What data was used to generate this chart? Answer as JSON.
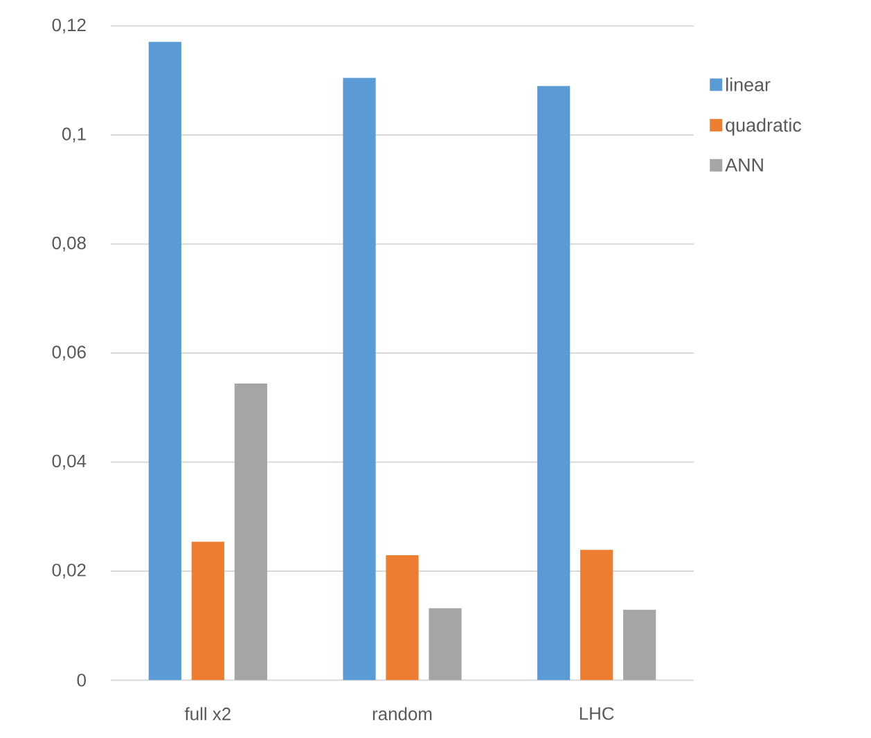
{
  "chart_data": {
    "type": "bar",
    "categories": [
      "full x2",
      "random",
      "LHC"
    ],
    "series": [
      {
        "name": "linear",
        "color": "#5b9bd5",
        "values": [
          0.1171,
          0.1105,
          0.109
        ]
      },
      {
        "name": "quadratic",
        "color": "#ed7d31",
        "values": [
          0.0254,
          0.0229,
          0.0239
        ]
      },
      {
        "name": "ANN",
        "color": "#a5a5a5",
        "values": [
          0.0544,
          0.0132,
          0.0129
        ]
      }
    ],
    "ylim": [
      0,
      0.12
    ],
    "yticks": [
      {
        "value": 0,
        "label": "0"
      },
      {
        "value": 0.02,
        "label": "0,02"
      },
      {
        "value": 0.04,
        "label": "0,04"
      },
      {
        "value": 0.06,
        "label": "0,06"
      },
      {
        "value": 0.08,
        "label": "0,08"
      },
      {
        "value": 0.1,
        "label": "0,1"
      },
      {
        "value": 0.12,
        "label": "0,12"
      }
    ],
    "grid": "y",
    "legend": "right"
  }
}
